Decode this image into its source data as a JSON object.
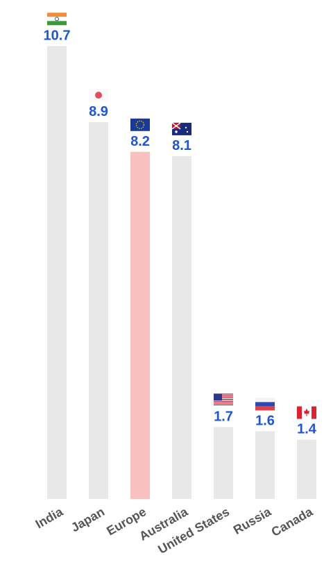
{
  "chart_data": {
    "type": "bar",
    "categories": [
      "India",
      "Japan",
      "Europe",
      "Australia",
      "United States",
      "Russia",
      "Canada"
    ],
    "values": [
      10.7,
      8.9,
      8.2,
      8.1,
      1.7,
      1.6,
      1.4
    ],
    "colors": [
      "#e8e8e8",
      "#e8e8e8",
      "#f9c0c0",
      "#e8e8e8",
      "#e8e8e8",
      "#e8e8e8",
      "#e8e8e8"
    ],
    "value_label_color": "#1a56db",
    "ylim": [
      0,
      11
    ]
  }
}
